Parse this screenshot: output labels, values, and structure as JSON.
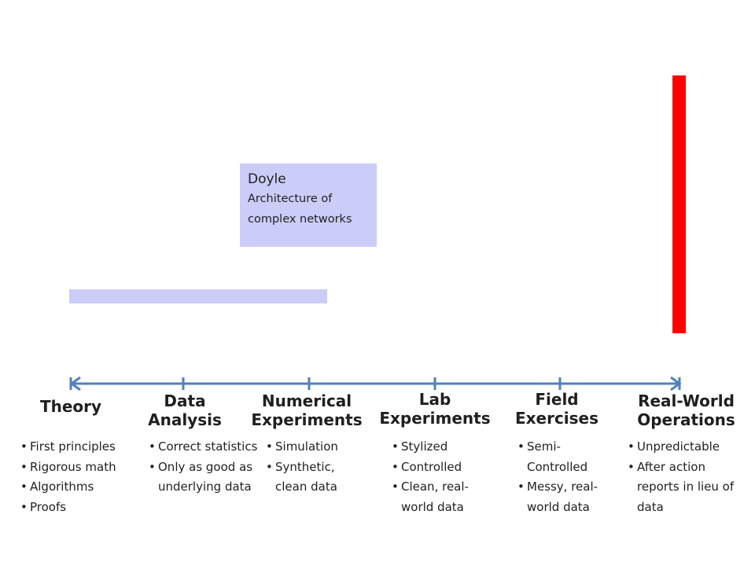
{
  "doyle": {
    "name": "Doyle",
    "description": "Architecture of complex networks"
  },
  "colors": {
    "axis": "#4f81bd",
    "highlight_box": "#ccccf8",
    "red_bar": "#ff0000"
  },
  "stages": [
    {
      "title_line1": "Theory",
      "title_line2": "",
      "bullets": [
        "First principles",
        "Rigorous math",
        "Algorithms",
        "Proofs"
      ]
    },
    {
      "title_line1": "Data",
      "title_line2": "Analysis",
      "bullets": [
        "Correct statistics",
        "Only as good as underlying data"
      ]
    },
    {
      "title_line1": "Numerical",
      "title_line2": "Experiments",
      "bullets": [
        "Simulation",
        "Synthetic, clean data"
      ]
    },
    {
      "title_line1": "Lab",
      "title_line2": "Experiments",
      "bullets": [
        "Stylized",
        "Controlled",
        "Clean, real-world data"
      ]
    },
    {
      "title_line1": "Field",
      "title_line2": "Exercises",
      "bullets": [
        "Semi-Controlled",
        "Messy, real-world data"
      ]
    },
    {
      "title_line1": "Real-World",
      "title_line2": "Operations",
      "bullets": [
        "Unpredictable",
        "After action reports in lieu of data"
      ]
    }
  ]
}
